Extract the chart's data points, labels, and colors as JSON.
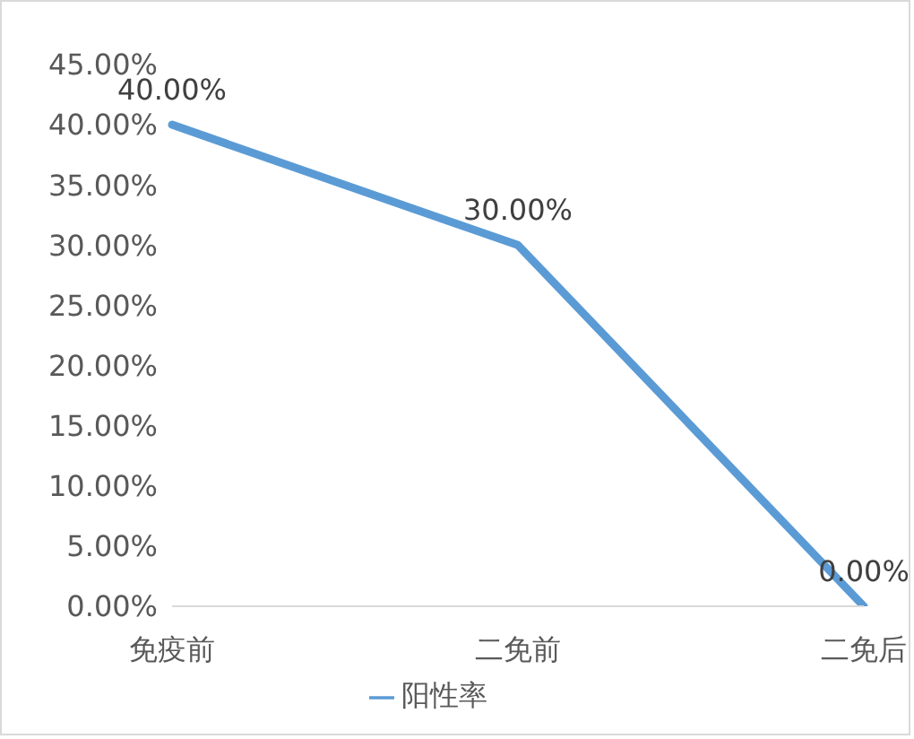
{
  "chart_data": {
    "type": "line",
    "categories": [
      "免疫前",
      "二免前",
      "二免后"
    ],
    "series": [
      {
        "name": "阳性率",
        "color": "#5b9bd5",
        "values": [
          40,
          30,
          0
        ],
        "value_labels": [
          "40.00%",
          "30.00%",
          "0.00%"
        ]
      }
    ],
    "ylim": [
      0,
      45
    ],
    "yticks": [
      {
        "value": 0,
        "label": "0.00%"
      },
      {
        "value": 5,
        "label": "5.00%"
      },
      {
        "value": 10,
        "label": "10.00%"
      },
      {
        "value": 15,
        "label": "15.00%"
      },
      {
        "value": 20,
        "label": "20.00%"
      },
      {
        "value": 25,
        "label": "25.00%"
      },
      {
        "value": 30,
        "label": "30.00%"
      },
      {
        "value": 35,
        "label": "35.00%"
      },
      {
        "value": 40,
        "label": "40.00%"
      },
      {
        "value": 45,
        "label": "45.00%"
      }
    ],
    "marker": "none",
    "legend": "bottom"
  }
}
